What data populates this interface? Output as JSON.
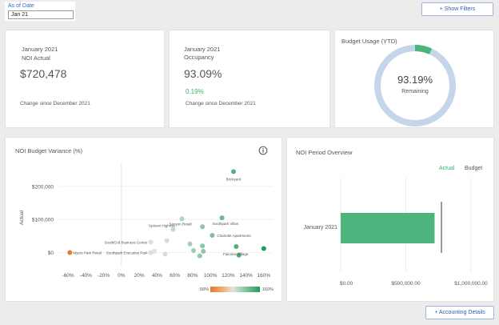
{
  "filter": {
    "label": "As of Date",
    "value": "Jan 21"
  },
  "buttons": {
    "show_filters": "+ Show Filters",
    "accounting_details": "+ Accounting Details"
  },
  "kpi_noi": {
    "period": "January 2021",
    "label": "NOI Actual",
    "value": "$720,478",
    "change_label": "Change since December 2021"
  },
  "kpi_occupancy": {
    "period": "January 2021",
    "label": "Occupancy",
    "value": "93.09%",
    "change_value": "0.19%",
    "change_label": "Change since December 2021"
  },
  "budget_usage": {
    "title": "Budget Usage (YTD)",
    "value": "93.19%",
    "label": "Remaining",
    "remaining_fraction": 0.9319
  },
  "variance": {
    "title": "NOI Budget Variance  (%)",
    "info_icon": "info-icon",
    "ylabel": "Actual",
    "legend_min": "-58%",
    "legend_max": "160%",
    "colors": {
      "low": "#e9792b",
      "high": "#1f9e5a"
    }
  },
  "period_overview": {
    "title": "NOI Period Overview",
    "legend_actual": "Actual",
    "legend_budget": "Budget",
    "colors": {
      "actual": "#4cb47c",
      "budget": "#999999"
    }
  },
  "chart_data": [
    {
      "type": "scatter",
      "title": "NOI Budget Variance  (%)",
      "xlabel": "",
      "ylabel": "Actual",
      "xlim": [
        -70,
        170
      ],
      "ylim": [
        -40000,
        270000
      ],
      "x_ticks": [
        -60,
        -40,
        -20,
        0,
        20,
        40,
        60,
        80,
        100,
        120,
        140,
        160
      ],
      "x_tick_labels": [
        "-60%",
        "-40%",
        "-20%",
        "0%",
        "20%",
        "40%",
        "60%",
        "80%",
        "100%",
        "120%",
        "140%",
        "160%"
      ],
      "y_ticks": [
        0,
        100000,
        200000
      ],
      "y_tick_labels": [
        "$0",
        "$100,000",
        "$200,000"
      ],
      "color_range": [
        -58,
        160
      ],
      "points": [
        {
          "label": "Brickyard",
          "x": 126,
          "y": 245000
        },
        {
          "label": "",
          "x": 113,
          "y": 105000
        },
        {
          "label": "Southpark Villas",
          "x": "",
          "y": ""
        },
        {
          "label": "Sanyon Retail",
          "x": 68,
          "y": 102000
        },
        {
          "label": "",
          "x": 91,
          "y": 78000
        },
        {
          "label": "Uptown Highrise",
          "x": 58,
          "y": 70000
        },
        {
          "label": "Charlotte Apartments",
          "x": 102,
          "y": 52000
        },
        {
          "label": "SouthEnd Business Center",
          "x": 33,
          "y": 32000
        },
        {
          "label": "",
          "x": 51,
          "y": 36000
        },
        {
          "label": "",
          "x": 77,
          "y": 26000
        },
        {
          "label": "",
          "x": 91,
          "y": 20000
        },
        {
          "label": "",
          "x": 129,
          "y": 18000
        },
        {
          "label": "",
          "x": 160,
          "y": 12000
        },
        {
          "label": "",
          "x": 37,
          "y": 4000
        },
        {
          "label": "",
          "x": 81,
          "y": 6000
        },
        {
          "label": "",
          "x": 92,
          "y": 4000
        },
        {
          "label": "Fairview Village",
          "x": 132,
          "y": -8000
        },
        {
          "label": "",
          "x": 49,
          "y": -5000
        },
        {
          "label": "",
          "x": 88,
          "y": -10000
        },
        {
          "label": "Southpark Executive Park",
          "x": 33,
          "y": 0
        },
        {
          "label": "Myers Park Retail",
          "x": -58,
          "y": 0
        }
      ]
    },
    {
      "type": "bar",
      "orientation": "horizontal",
      "title": "NOI Period Overview",
      "categories": [
        "January 2021"
      ],
      "series": [
        {
          "name": "Actual",
          "values": [
            720478
          ]
        },
        {
          "name": "Budget",
          "values": [
            773500
          ]
        }
      ],
      "xlim": [
        0,
        1000000
      ],
      "x_ticks": [
        0,
        500000,
        1000000
      ],
      "x_tick_labels": [
        "$0.00",
        "$500,000.00",
        "$1,000,000.00"
      ],
      "legend": "top-right"
    }
  ]
}
